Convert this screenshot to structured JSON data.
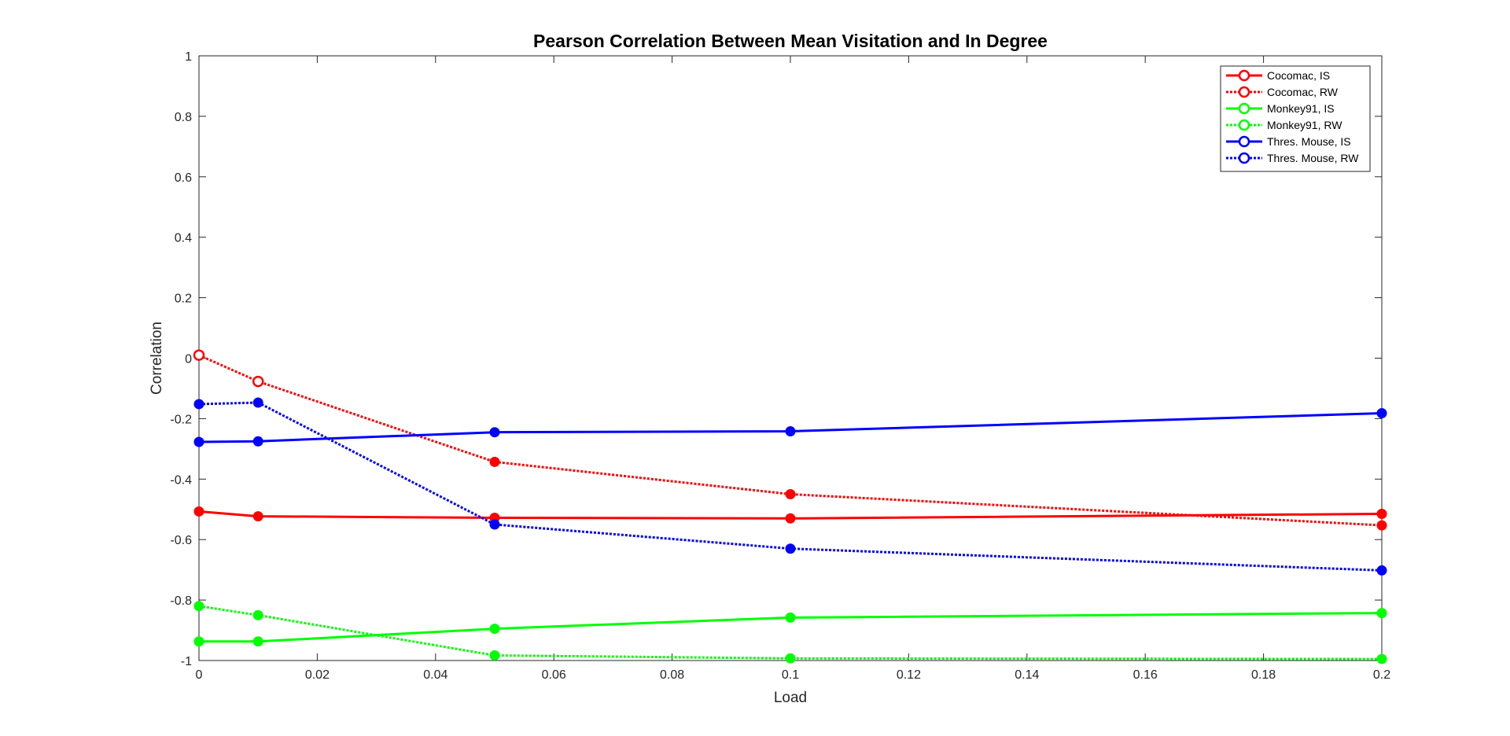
{
  "chart_data": {
    "type": "line",
    "title": "Pearson Correlation Between Mean Visitation and In Degree",
    "xlabel": "Load",
    "ylabel": "Correlation",
    "xlim": [
      0,
      0.2
    ],
    "ylim": [
      -1,
      1
    ],
    "xticks": [
      0,
      0.02,
      0.04,
      0.06,
      0.08,
      0.1,
      0.12,
      0.14,
      0.16,
      0.18,
      0.2
    ],
    "xtick_labels": [
      "0",
      "0.02",
      "0.04",
      "0.06",
      "0.08",
      "0.1",
      "0.12",
      "0.14",
      "0.16",
      "0.18",
      "0.2"
    ],
    "yticks": [
      -1,
      -0.8,
      -0.6,
      -0.4,
      -0.2,
      0,
      0.2,
      0.4,
      0.6,
      0.8,
      1
    ],
    "ytick_labels": [
      "-1",
      "-0.8",
      "-0.6",
      "-0.4",
      "-0.2",
      "0",
      "0.2",
      "0.4",
      "0.6",
      "0.8",
      "1"
    ],
    "grid": false,
    "legend_position": "top-right",
    "x": [
      0,
      0.01,
      0.05,
      0.1,
      0.2
    ],
    "series": [
      {
        "name": "Cocomac, IS",
        "color": "#ff0000",
        "line_style": "solid",
        "values": [
          -0.507,
          -0.523,
          -0.528,
          -0.53,
          -0.515
        ],
        "hollow_first": false
      },
      {
        "name": "Cocomac, RW",
        "color": "#ff0000",
        "line_style": "dotted",
        "values": [
          0.01,
          -0.077,
          -0.343,
          -0.45,
          -0.553
        ],
        "hollow_first": true
      },
      {
        "name": "Monkey91, IS",
        "color": "#00ff00",
        "line_style": "solid",
        "values": [
          -0.937,
          -0.937,
          -0.895,
          -0.858,
          -0.843
        ],
        "hollow_first": false
      },
      {
        "name": "Monkey91, RW",
        "color": "#00ff00",
        "line_style": "dotted",
        "values": [
          -0.82,
          -0.85,
          -0.983,
          -0.993,
          -0.995
        ],
        "hollow_first": false
      },
      {
        "name": "Thres. Mouse, IS",
        "color": "#0000ff",
        "line_style": "solid",
        "values": [
          -0.277,
          -0.275,
          -0.245,
          -0.242,
          -0.182
        ],
        "hollow_first": false
      },
      {
        "name": "Thres. Mouse, RW",
        "color": "#0000ff",
        "line_style": "dotted",
        "values": [
          -0.152,
          -0.147,
          -0.55,
          -0.63,
          -0.702
        ],
        "hollow_first": false
      }
    ]
  }
}
